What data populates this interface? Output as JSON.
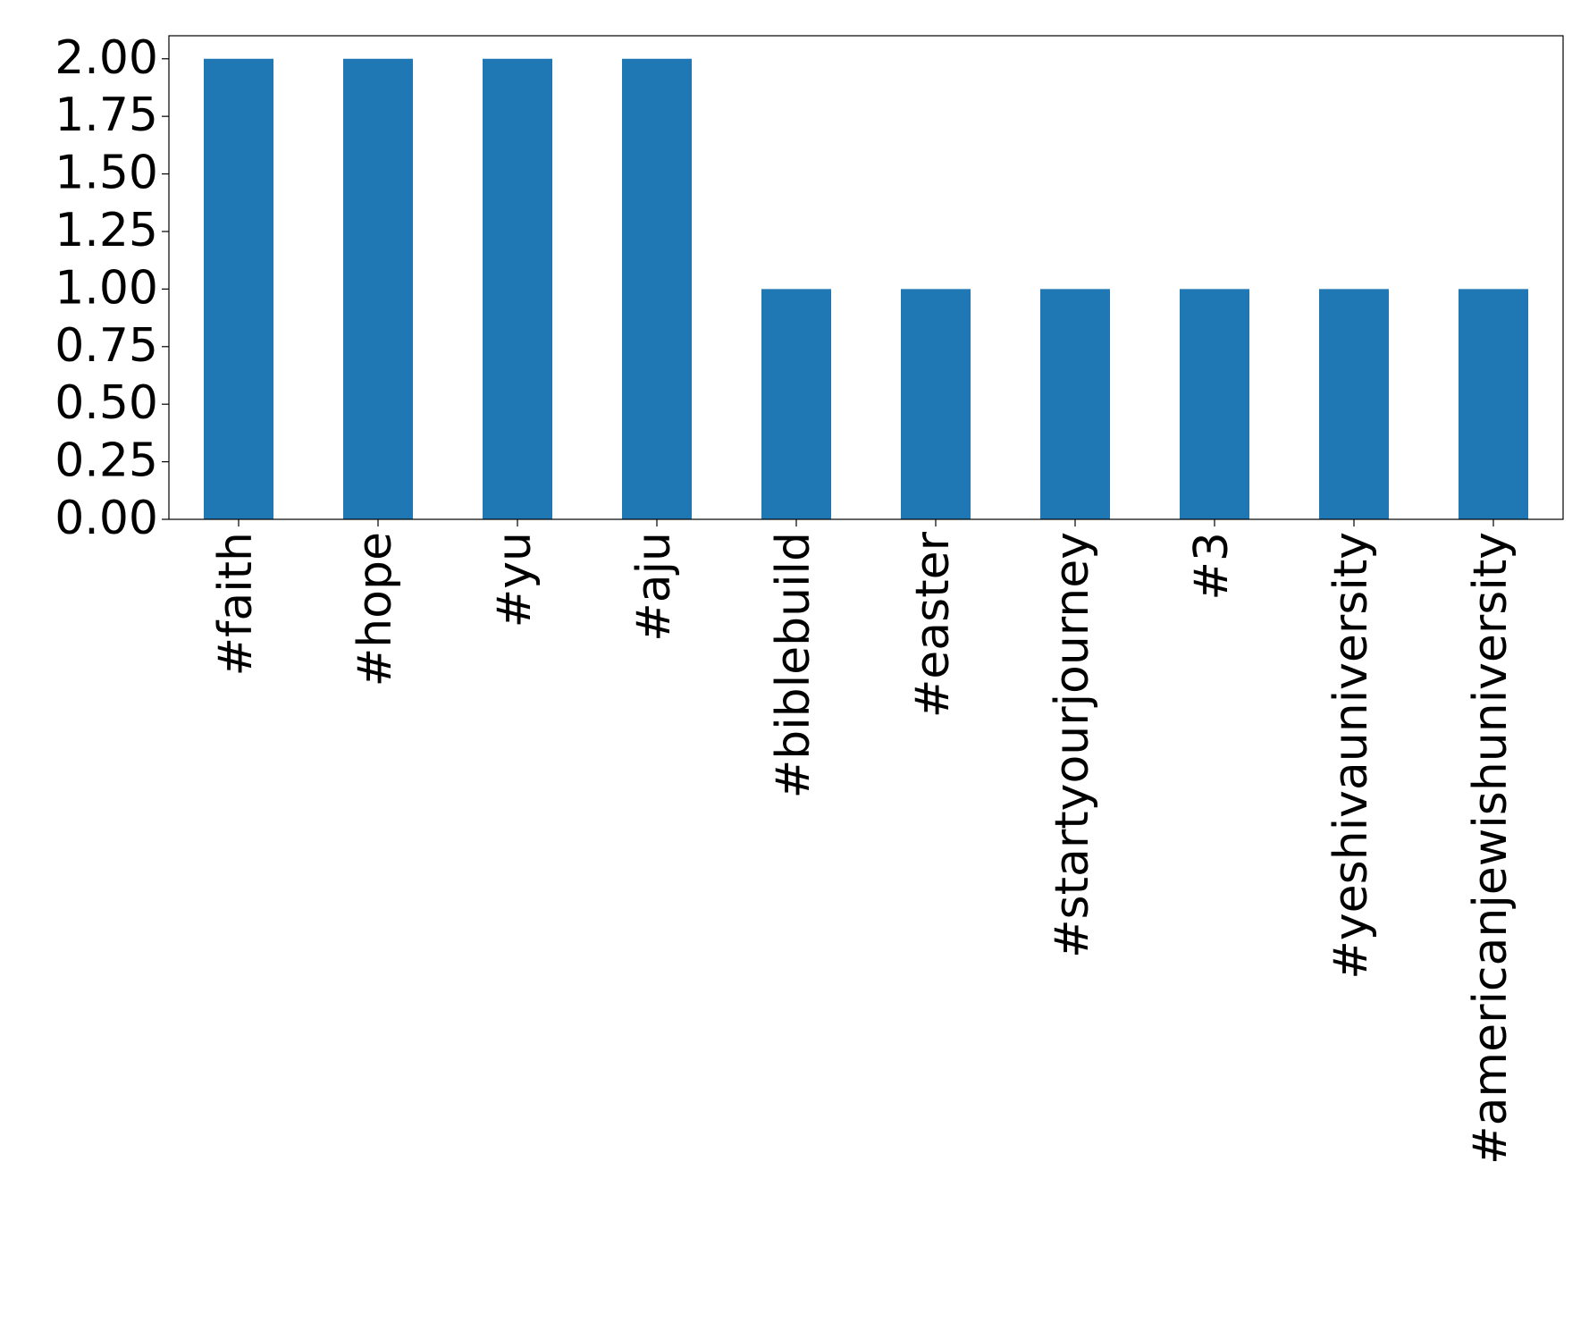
{
  "chart_data": {
    "type": "bar",
    "categories": [
      "#faith",
      "#hope",
      "#yu",
      "#aju",
      "#biblebuild",
      "#easter",
      "#startyourjourney",
      "#3",
      "#yeshivauniversity",
      "#americanjewishuniversity"
    ],
    "values": [
      2,
      2,
      2,
      2,
      1,
      1,
      1,
      1,
      1,
      1
    ],
    "color": "#1f77b4",
    "ylim": [
      0,
      2.1
    ],
    "yticks": [
      {
        "value": 0,
        "label": "0.00"
      },
      {
        "value": 0.25,
        "label": "0.25"
      },
      {
        "value": 0.5,
        "label": "0.50"
      },
      {
        "value": 0.75,
        "label": "0.75"
      },
      {
        "value": 1,
        "label": "1.00"
      },
      {
        "value": 1.25,
        "label": "1.25"
      },
      {
        "value": 1.5,
        "label": "1.50"
      },
      {
        "value": 1.75,
        "label": "1.75"
      },
      {
        "value": 2,
        "label": "2.00"
      }
    ],
    "grid": false
  }
}
